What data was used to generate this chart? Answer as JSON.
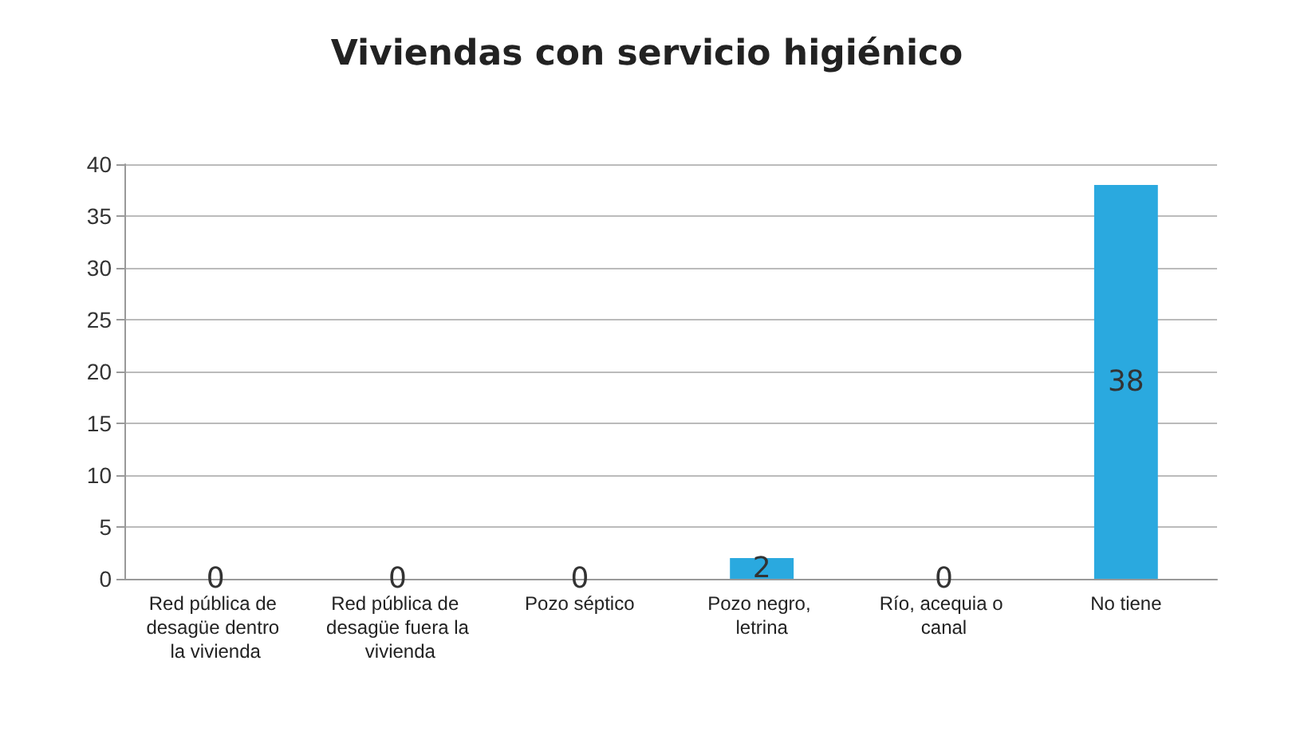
{
  "chart_data": {
    "type": "bar",
    "title": "Viviendas con servicio higiénico",
    "categories": [
      "Red pública de desagüe dentro la vivienda",
      "Red pública de desagüe fuera la vivienda",
      "Pozo séptico",
      "Pozo negro, letrina",
      "Río, acequia o canal",
      "No tiene"
    ],
    "values": [
      0,
      0,
      0,
      2,
      0,
      38
    ],
    "color": "#2aa9df",
    "ylim": [
      0,
      40
    ],
    "yticks": [
      0,
      5,
      10,
      15,
      20,
      25,
      30,
      35,
      40
    ],
    "grid": "y",
    "data_labels": true
  }
}
